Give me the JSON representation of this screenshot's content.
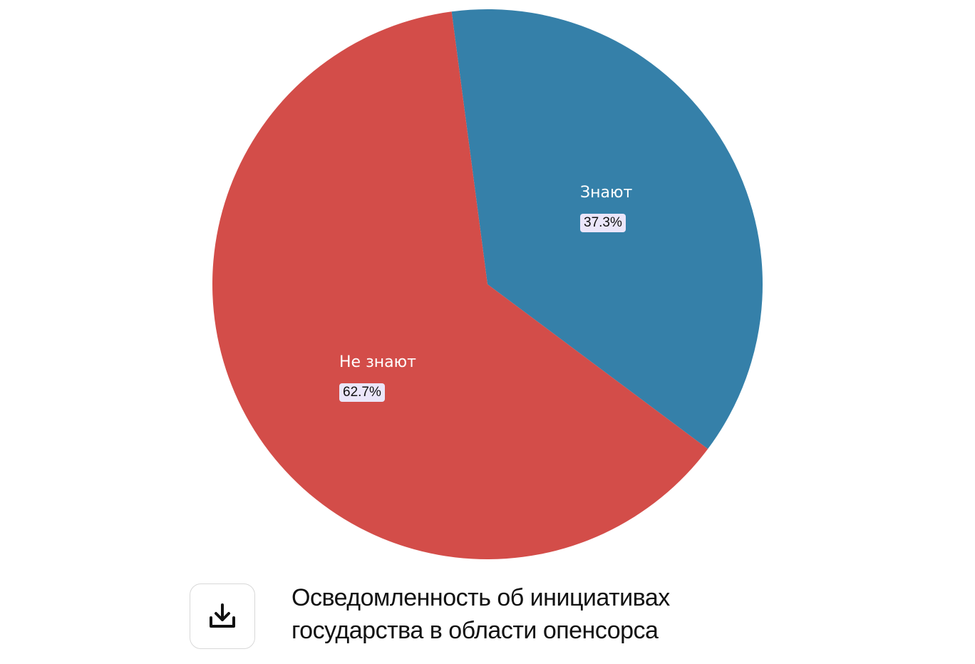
{
  "chart_data": {
    "type": "pie",
    "slices": [
      {
        "name": "Знают",
        "value": 37.3,
        "value_label": "37.3%",
        "color": "#3580a9"
      },
      {
        "name": "Не знают",
        "value": 62.7,
        "value_label": "62.7%",
        "color": "#d34d49"
      }
    ],
    "start_angle_deg": -7.5,
    "title": "Осведомленность об инициативах государства в области опенсорса"
  },
  "caption": {
    "line1": "Осведомленность об инициативах",
    "line2": "государства в области опенсорса"
  },
  "download": {
    "icon": "download-icon"
  }
}
